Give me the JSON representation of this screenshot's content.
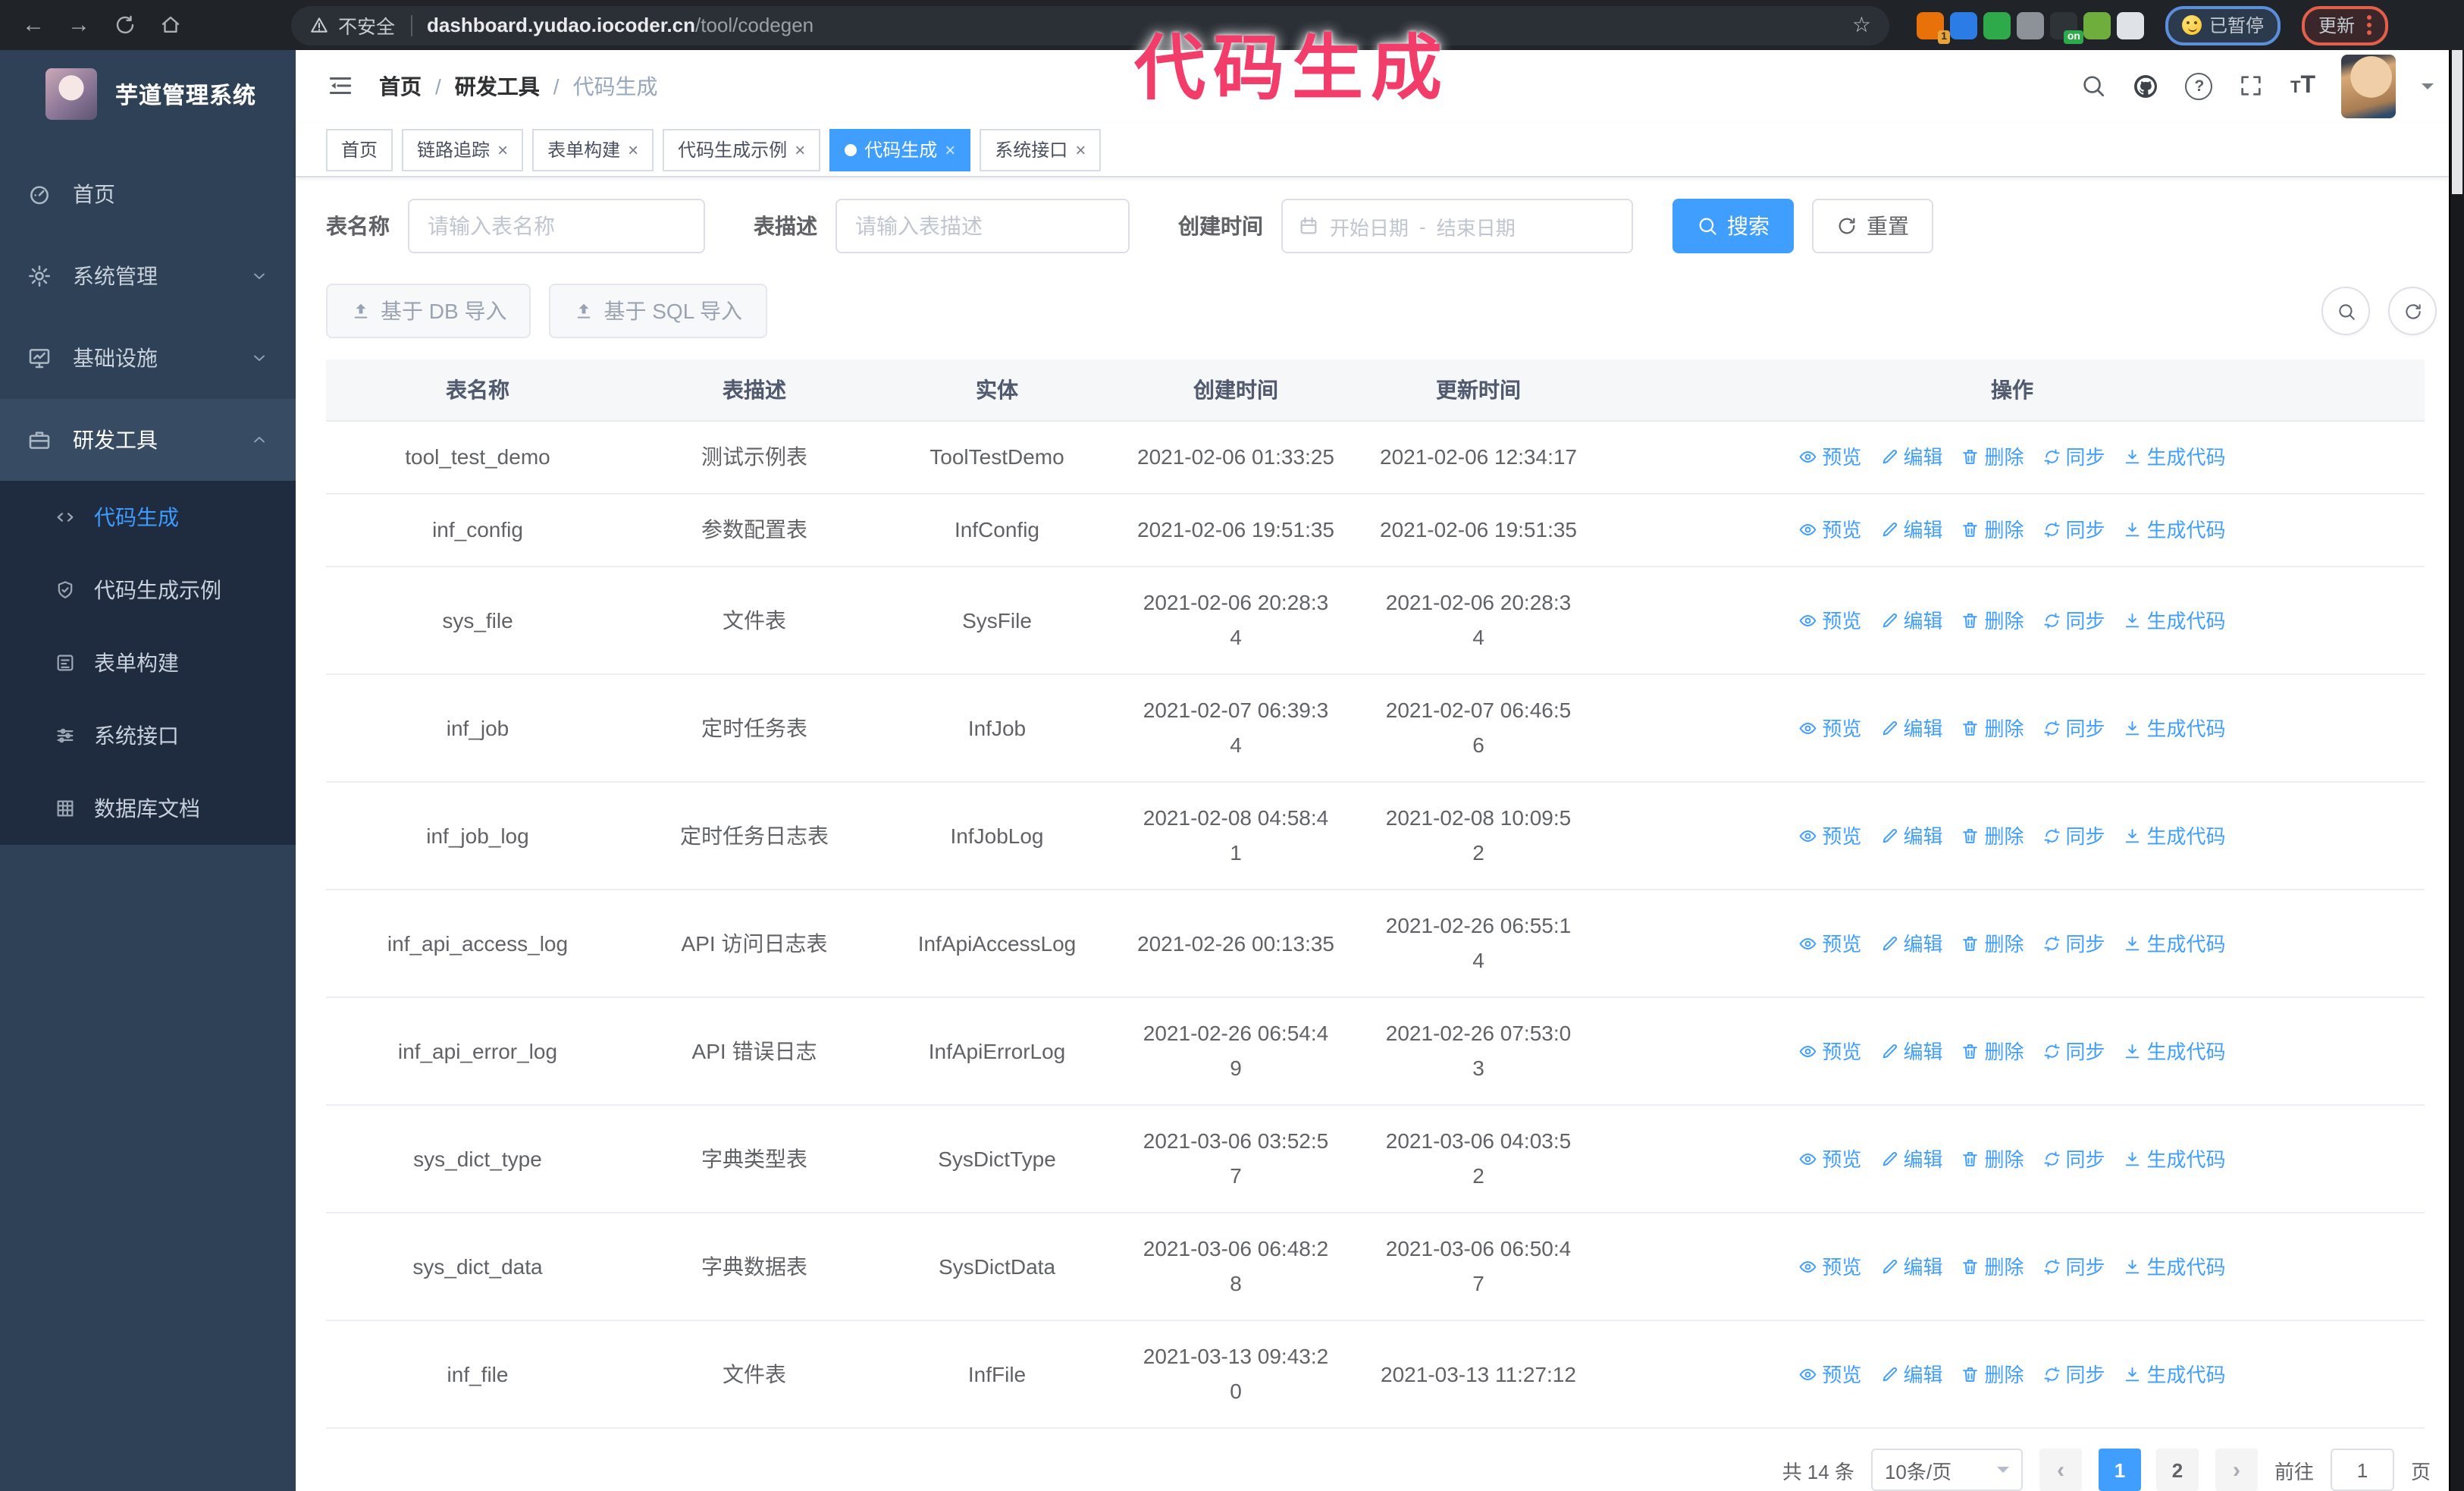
{
  "annotation": {
    "title": "代码生成"
  },
  "browser": {
    "security_label": "不安全",
    "url_host": "dashboard.yudao.iocoder.cn",
    "url_path": "/tool/codegen",
    "paused_badge": "已暂停",
    "update_label": "更新",
    "extensions": [
      {
        "icon": "proxy-extension-icon",
        "color": "#e8710a",
        "badge": "1"
      },
      {
        "icon": "gem-extension-icon",
        "color": "#2c7ce5"
      },
      {
        "icon": "check-extension-icon",
        "color": "#2faa4a"
      },
      {
        "icon": "grid-extension-icon",
        "color": "#8c9298"
      },
      {
        "icon": "switch-extension-icon",
        "color": "#2e3338",
        "badge": "on",
        "badge_color": "green"
      },
      {
        "icon": "key-extension-icon",
        "color": "#6fae3c"
      },
      {
        "icon": "puzzle-extension-icon",
        "color": "#dfe3e7"
      }
    ]
  },
  "sidebar": {
    "app_title": "芋道管理系统",
    "items": [
      {
        "label": "首页",
        "icon": "dashboard-icon"
      },
      {
        "label": "系统管理",
        "icon": "gear-icon",
        "chevron": "down"
      },
      {
        "label": "基础设施",
        "icon": "monitor-icon",
        "chevron": "down"
      },
      {
        "label": "研发工具",
        "icon": "toolbox-icon",
        "chevron": "up",
        "expanded": true
      }
    ],
    "sub_items": [
      {
        "label": "代码生成",
        "icon": "code-icon",
        "active": true
      },
      {
        "label": "代码生成示例",
        "icon": "shield-check-icon"
      },
      {
        "label": "表单构建",
        "icon": "form-icon"
      },
      {
        "label": "系统接口",
        "icon": "sliders-icon"
      },
      {
        "label": "数据库文档",
        "icon": "database-icon"
      }
    ]
  },
  "header": {
    "breadcrumb": [
      "首页",
      "研发工具",
      "代码生成"
    ]
  },
  "tabs": [
    {
      "label": "首页",
      "closable": false,
      "active": false
    },
    {
      "label": "链路追踪",
      "closable": true,
      "active": false
    },
    {
      "label": "表单构建",
      "closable": true,
      "active": false
    },
    {
      "label": "代码生成示例",
      "closable": true,
      "active": false
    },
    {
      "label": "代码生成",
      "closable": true,
      "active": true
    },
    {
      "label": "系统接口",
      "closable": true,
      "active": false
    }
  ],
  "filters": {
    "name_label": "表名称",
    "name_placeholder": "请输入表名称",
    "desc_label": "表描述",
    "desc_placeholder": "请输入表描述",
    "time_label": "创建时间",
    "start_placeholder": "开始日期",
    "range_separator": "-",
    "end_placeholder": "结束日期",
    "search_label": "搜索",
    "reset_label": "重置"
  },
  "toolbar": {
    "import_db_label": "基于 DB 导入",
    "import_sql_label": "基于 SQL 导入"
  },
  "table": {
    "headers": [
      "表名称",
      "表描述",
      "实体",
      "创建时间",
      "更新时间",
      "操作"
    ],
    "action_labels": [
      "预览",
      "编辑",
      "删除",
      "同步",
      "生成代码"
    ],
    "action_icons": [
      "eye-icon",
      "pen-icon",
      "trash-icon",
      "sync-icon",
      "download-icon"
    ],
    "rows": [
      {
        "name": "tool_test_demo",
        "desc": "测试示例表",
        "entity": "ToolTestDemo",
        "created": "2021-02-06 01:33:25",
        "updated": "2021-02-06 12:34:17"
      },
      {
        "name": "inf_config",
        "desc": "参数配置表",
        "entity": "InfConfig",
        "created": "2021-02-06 19:51:35",
        "updated": "2021-02-06 19:51:35"
      },
      {
        "name": "sys_file",
        "desc": "文件表",
        "entity": "SysFile",
        "created": "2021-02-06 20:28:3\n4",
        "updated": "2021-02-06 20:28:3\n4"
      },
      {
        "name": "inf_job",
        "desc": "定时任务表",
        "entity": "InfJob",
        "created": "2021-02-07 06:39:3\n4",
        "updated": "2021-02-07 06:46:5\n6"
      },
      {
        "name": "inf_job_log",
        "desc": "定时任务日志表",
        "entity": "InfJobLog",
        "created": "2021-02-08 04:58:4\n1",
        "updated": "2021-02-08 10:09:5\n2"
      },
      {
        "name": "inf_api_access_log",
        "desc": "API 访问日志表",
        "entity": "InfApiAccessLog",
        "created": "2021-02-26 00:13:35",
        "updated": "2021-02-26 06:55:1\n4"
      },
      {
        "name": "inf_api_error_log",
        "desc": "API 错误日志",
        "entity": "InfApiErrorLog",
        "created": "2021-02-26 06:54:4\n9",
        "updated": "2021-02-26 07:53:0\n3"
      },
      {
        "name": "sys_dict_type",
        "desc": "字典类型表",
        "entity": "SysDictType",
        "created": "2021-03-06 03:52:5\n7",
        "updated": "2021-03-06 04:03:5\n2"
      },
      {
        "name": "sys_dict_data",
        "desc": "字典数据表",
        "entity": "SysDictData",
        "created": "2021-03-06 06:48:2\n8",
        "updated": "2021-03-06 06:50:4\n7"
      },
      {
        "name": "inf_file",
        "desc": "文件表",
        "entity": "InfFile",
        "created": "2021-03-13 09:43:2\n0",
        "updated": "2021-03-13 11:27:12"
      }
    ]
  },
  "pagination": {
    "total_label": "共 14 条",
    "page_size_label": "10条/页",
    "pages": [
      "1",
      "2"
    ],
    "active_page": "1",
    "goto_label": "前往",
    "goto_value": "1",
    "page_suffix": "页"
  },
  "colors": {
    "primary": "#409eff",
    "annotation_pink": "#f23d6b",
    "sidebar_bg": "#2e4156",
    "submenu_bg": "#1f2b3f"
  }
}
